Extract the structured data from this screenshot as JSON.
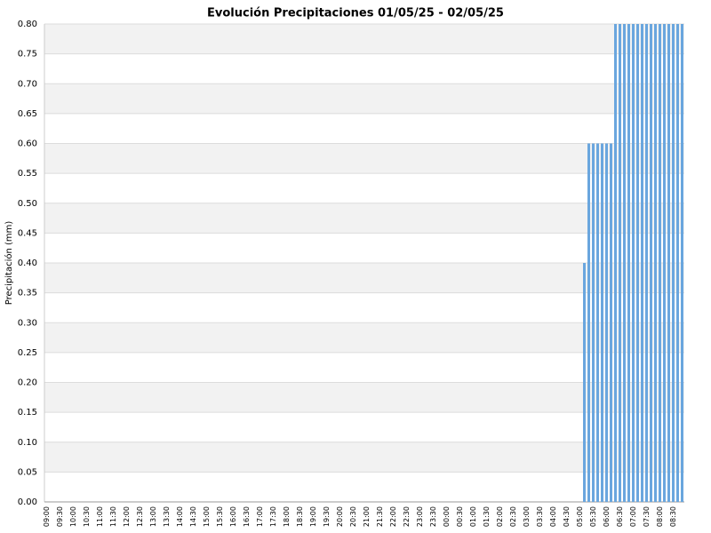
{
  "chart_data": {
    "type": "bar",
    "title": "Evolución Precipitaciones 01/05/25 - 02/05/25",
    "y_label": "Precipitación (mm)",
    "categories": [
      "09:00",
      null,
      null,
      "09:30",
      null,
      null,
      "10:00",
      null,
      null,
      "10:30",
      null,
      null,
      "11:00",
      null,
      null,
      "11:30",
      null,
      null,
      "12:00",
      null,
      null,
      "12:30",
      null,
      null,
      "13:00",
      null,
      null,
      "13:30",
      null,
      null,
      "14:00",
      null,
      null,
      "14:30",
      null,
      null,
      "15:00",
      null,
      null,
      "15:30",
      null,
      null,
      "16:00",
      null,
      null,
      "16:30",
      null,
      null,
      "17:00",
      null,
      null,
      "17:30",
      null,
      null,
      "18:00",
      null,
      null,
      "18:30",
      null,
      null,
      "19:00",
      null,
      null,
      "19:30",
      null,
      null,
      "20:00",
      null,
      null,
      "20:30",
      null,
      null,
      "21:00",
      null,
      null,
      "21:30",
      null,
      null,
      "22:00",
      null,
      null,
      "22:30",
      null,
      null,
      "23:00",
      null,
      null,
      "23:30",
      null,
      null,
      "00:00",
      null,
      null,
      "00:30",
      null,
      null,
      "01:00",
      null,
      null,
      "01:30",
      null,
      null,
      "02:00",
      null,
      null,
      "02:30",
      null,
      null,
      "03:00",
      null,
      null,
      "03:30",
      null,
      null,
      "04:00",
      null,
      null,
      "04:30",
      null,
      null,
      "05:00",
      null,
      null,
      "05:30",
      null,
      null,
      "06:00",
      null,
      null,
      "06:30",
      null,
      null,
      "07:00",
      null,
      null,
      "07:30",
      null,
      null,
      "08:00",
      null,
      null,
      "08:30",
      null,
      null
    ],
    "values": [
      0,
      0,
      0,
      0,
      0,
      0,
      0,
      0,
      0,
      0,
      0,
      0,
      0,
      0,
      0,
      0,
      0,
      0,
      0,
      0,
      0,
      0,
      0,
      0,
      0,
      0,
      0,
      0,
      0,
      0,
      0,
      0,
      0,
      0,
      0,
      0,
      0,
      0,
      0,
      0,
      0,
      0,
      0,
      0,
      0,
      0,
      0,
      0,
      0,
      0,
      0,
      0,
      0,
      0,
      0,
      0,
      0,
      0,
      0,
      0,
      0,
      0,
      0,
      0,
      0,
      0,
      0,
      0,
      0,
      0,
      0,
      0,
      0,
      0,
      0,
      0,
      0,
      0,
      0,
      0,
      0,
      0,
      0,
      0,
      0,
      0,
      0,
      0,
      0,
      0,
      0,
      0,
      0,
      0,
      0,
      0,
      0,
      0,
      0,
      0,
      0,
      0,
      0,
      0,
      0,
      0,
      0,
      0,
      0,
      0,
      0,
      0,
      0,
      0,
      0,
      0,
      0,
      0,
      0,
      0,
      0,
      0.4,
      0.6,
      0.6,
      0.6,
      0.6,
      0.6,
      0.6,
      0.8,
      0.8,
      0.8,
      0.8,
      0.8,
      0.8,
      0.8,
      0.8,
      0.8,
      0.8,
      0.8,
      0.8,
      0.8,
      0.8,
      0.8,
      0.8
    ],
    "color": "#6aa6de",
    "ylim": [
      0,
      0.8
    ],
    "yticks": [
      {
        "value": 0,
        "label": "0.00"
      },
      {
        "value": 0.05,
        "label": "0.05"
      },
      {
        "value": 0.1,
        "label": "0.10"
      },
      {
        "value": 0.15,
        "label": "0.15"
      },
      {
        "value": 0.2,
        "label": "0.20"
      },
      {
        "value": 0.25,
        "label": "0.25"
      },
      {
        "value": 0.3,
        "label": "0.30"
      },
      {
        "value": 0.35,
        "label": "0.35"
      },
      {
        "value": 0.4,
        "label": "0.40"
      },
      {
        "value": 0.45,
        "label": "0.45"
      },
      {
        "value": 0.5,
        "label": "0.50"
      },
      {
        "value": 0.55,
        "label": "0.55"
      },
      {
        "value": 0.6,
        "label": "0.60"
      },
      {
        "value": 0.65,
        "label": "0.65"
      },
      {
        "value": 0.7,
        "label": "0.70"
      },
      {
        "value": 0.75,
        "label": "0.75"
      },
      {
        "value": 0.8,
        "label": "0.80"
      }
    ],
    "grid": true
  }
}
